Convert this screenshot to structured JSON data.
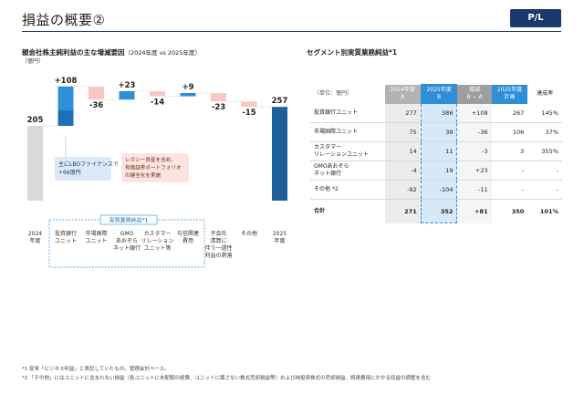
{
  "header": {
    "title": "損益の概要②",
    "badge": "P/L"
  },
  "waterfall": {
    "title": "親会社株主純利益の主な増減要因",
    "subtitle": "（2024年度 vs 2025年度）",
    "unit": "（億円）",
    "colors": {
      "base": "#d9d9d9",
      "end": "#1f5f99",
      "increase": "#2f8fd6",
      "decrease": "#f8c9c0",
      "callout_blue": "#dde9f7",
      "callout_red": "#fde4df"
    },
    "bars": [
      {
        "key": "2024",
        "label": "2024\n年度",
        "value": 205,
        "kind": "base",
        "display": "205"
      },
      {
        "key": "ib",
        "label": "投資銀行\nユニット",
        "value": 108,
        "kind": "increase",
        "display": "+108",
        "sub_value": 66
      },
      {
        "key": "mi",
        "label": "市場国際\nユニット",
        "value": -36,
        "kind": "decrease",
        "display": "-36"
      },
      {
        "key": "gmo",
        "label": "GMO\nあおぞら\nネット銀行",
        "value": 23,
        "kind": "increase",
        "display": "+23"
      },
      {
        "key": "cr",
        "label": "カスタマー\nリレーション\nユニット等",
        "value": -14,
        "kind": "decrease",
        "display": "-14"
      },
      {
        "key": "ls",
        "label": "与信関連\n費用",
        "value": 9,
        "kind": "increase",
        "display": "+9"
      },
      {
        "key": "sub",
        "label": "子会社\n清算に\n伴う一過性\n利益の剥落",
        "value": -23,
        "kind": "decrease",
        "display": "-23"
      },
      {
        "key": "oth",
        "label": "その他",
        "value": -15,
        "kind": "decrease",
        "display": "-15"
      },
      {
        "key": "2025",
        "label": "2025\n年度",
        "value": 257,
        "kind": "end",
        "display": "257"
      }
    ],
    "callout_blue": "主にLBOファイナンスで\n+66億円",
    "callout_red": "レガシー資産を含め、\n有価証券ポートフォリオ\nの健全化を実施",
    "bracket_label": "実質業務純益*1"
  },
  "segment": {
    "title": "セグメント別実質業務純益*1",
    "headers": {
      "unit": "（単位：億円）",
      "a": "2024年度\nA",
      "b": "2025年度\nB",
      "diff": "増減\nB − A",
      "plan": "2025年度\n計画",
      "rate": "達成率"
    },
    "rows": [
      {
        "name": "投資銀行ユニット",
        "a": "277",
        "b": "386",
        "diff": "+108",
        "plan": "267",
        "rate": "145%"
      },
      {
        "name": "市場国際ユニット",
        "a": "75",
        "b": "39",
        "diff": "-36",
        "plan": "106",
        "rate": "37%"
      },
      {
        "name": "カスタマー\nリレーションユニット",
        "a": "14",
        "b": "11",
        "diff": "-3",
        "plan": "3",
        "rate": "355%"
      },
      {
        "name": "GMOあおぞら\nネット銀行",
        "a": "-4",
        "b": "19",
        "diff": "+23",
        "plan": "-",
        "rate": "-"
      },
      {
        "name": "その他 *2",
        "a": "-92",
        "b": "-104",
        "diff": "-11",
        "plan": "-",
        "rate": "-"
      }
    ],
    "total": {
      "name": "合計",
      "a": "271",
      "b": "352",
      "diff": "+81",
      "plan": "350",
      "rate": "101%"
    }
  },
  "footnotes": [
    "*1 従来「ビジネス利益」と表記していたもの。管理会計ベース。",
    "*2 「その他」にはユニットに含まれない損益（各ユニットに未配賦の経費、ユニットに属さない株式売却損益等）および純投資株式の売却損益、調達費用にかかる収益の調整を含む"
  ]
}
